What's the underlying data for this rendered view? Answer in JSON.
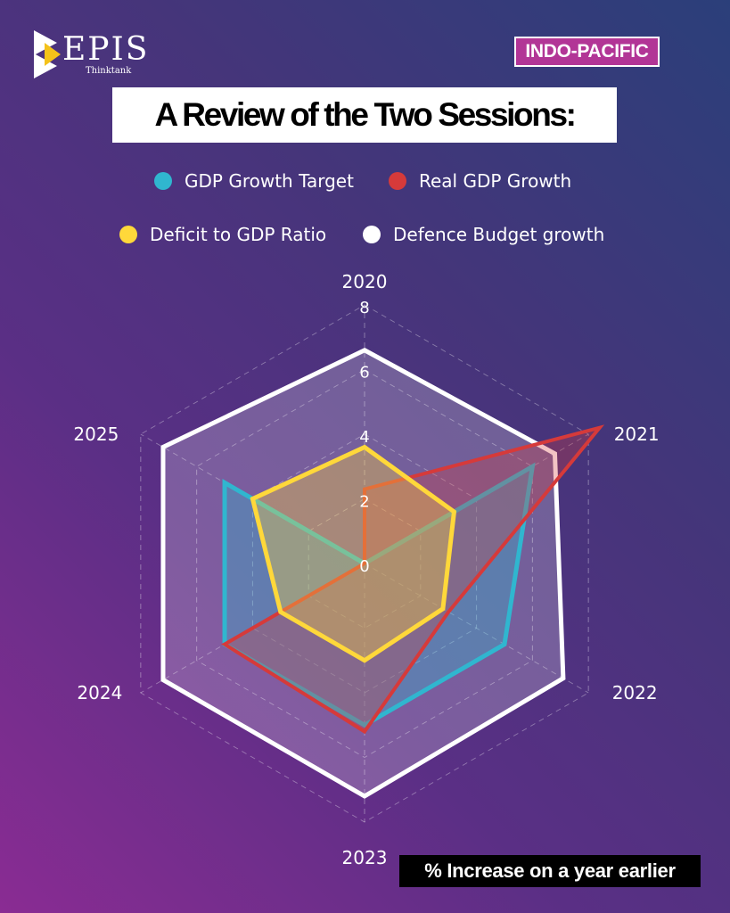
{
  "brand": {
    "name": "EPIS",
    "sub": "Thinktank"
  },
  "region_tag": "INDO-PACIFIC",
  "footer_note": "% Increase on a year earlier",
  "colors": {
    "target": "#30b6cf",
    "real": "#d63a3a",
    "deficit": "#ffd83a",
    "defence": "#ffffff"
  },
  "chart_data": {
    "type": "radar",
    "title": "A Review of the Two Sessions:",
    "categories": [
      "2020",
      "2021",
      "2022",
      "2023",
      "2024",
      "2025"
    ],
    "rlim": [
      0,
      8
    ],
    "ticks": [
      "0",
      "2",
      "4",
      "6",
      "8"
    ],
    "grid": true,
    "legend_position": "top",
    "series": [
      {
        "name": "Defence Budget growth",
        "values": [
          6.6,
          6.8,
          7.1,
          7.2,
          7.2,
          7.2
        ]
      },
      {
        "name": "GDP Growth Target",
        "values": [
          0,
          6.0,
          5.0,
          5.0,
          5.0,
          5.0
        ]
      },
      {
        "name": "Real GDP Growth",
        "values": [
          2.3,
          8.4,
          3.0,
          5.2,
          5.0,
          0
        ]
      },
      {
        "name": "Deficit to GDP Ratio",
        "values": [
          3.6,
          3.2,
          2.8,
          3.0,
          3.0,
          4.0
        ]
      }
    ]
  }
}
